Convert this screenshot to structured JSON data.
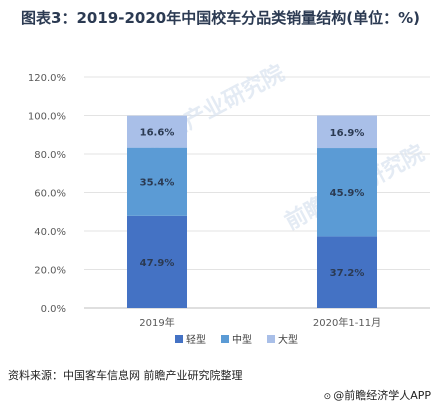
{
  "title": "图表3：2019-2020年中国校车分品类销量结构(单位：%)",
  "source": "资料来源：中国客车信息网 前瞻产业研究院整理",
  "credit": "@前瞻经济学人APP",
  "watermark": "前瞻产业研究院",
  "chart_data": {
    "type": "bar",
    "stacked": true,
    "categories": [
      "2019年",
      "2020年1-11月"
    ],
    "series": [
      {
        "name": "轻型",
        "values": [
          47.9,
          37.2
        ],
        "labels": [
          "47.9%",
          "37.2%"
        ],
        "color": "#4472c4"
      },
      {
        "name": "中型",
        "values": [
          35.4,
          45.9
        ],
        "labels": [
          "35.4%",
          "45.9%"
        ],
        "color": "#5b9bd5"
      },
      {
        "name": "大型",
        "values": [
          16.6,
          16.9
        ],
        "labels": [
          "16.6%",
          "16.9%"
        ],
        "color": "#a9bfe8"
      }
    ],
    "y_ticks": [
      "0.0%",
      "20.0%",
      "40.0%",
      "60.0%",
      "80.0%",
      "100.0%",
      "120.0%"
    ],
    "ylim": [
      0,
      120
    ],
    "grid": true,
    "legend_position": "bottom"
  }
}
